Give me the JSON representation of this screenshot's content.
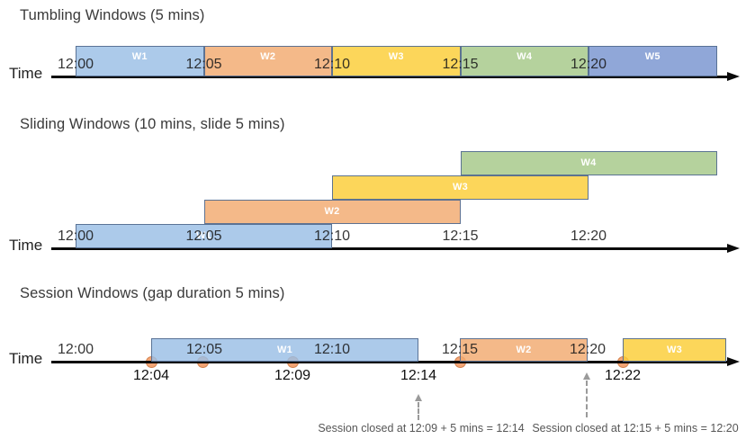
{
  "colors": {
    "blue": "#9ABEE5",
    "orange": "#F1A96F",
    "yellow": "#FBCD36",
    "green": "#A5C888",
    "periwinkle": "#7894D0",
    "box_border": "#556E91",
    "axis": "#0A0A0A",
    "dot_fill": "#F2A474",
    "dot_border": "#D2824E",
    "annotation_text": "#565656",
    "window_label_text": "#FFFFFF"
  },
  "sections": [
    {
      "id": "tumbling",
      "title": "Tumbling Windows (5 mins)",
      "axis_label": "Time",
      "ticks": [
        "12:00",
        "12:05",
        "12:10",
        "12:15",
        "12:20"
      ],
      "windows": [
        {
          "label": "W1",
          "from": "12:00",
          "to": "12:05",
          "color": "blue"
        },
        {
          "label": "W2",
          "from": "12:05",
          "to": "12:10",
          "color": "orange"
        },
        {
          "label": "W3",
          "from": "12:10",
          "to": "12:15",
          "color": "yellow"
        },
        {
          "label": "W4",
          "from": "12:15",
          "to": "12:20",
          "color": "green"
        },
        {
          "label": "W5",
          "from": "12:20",
          "to": "12:25",
          "color": "periwinkle"
        }
      ]
    },
    {
      "id": "sliding",
      "title": "Sliding Windows (10 mins, slide 5 mins)",
      "axis_label": "Time",
      "ticks": [
        "12:00",
        "12:05",
        "12:10",
        "12:15",
        "12:20"
      ],
      "windows": [
        {
          "label": "W1",
          "from": "12:00",
          "to": "12:10",
          "color": "blue",
          "row": 0
        },
        {
          "label": "W2",
          "from": "12:05",
          "to": "12:15",
          "color": "orange",
          "row": 1
        },
        {
          "label": "W3",
          "from": "12:10",
          "to": "12:20",
          "color": "yellow",
          "row": 2
        },
        {
          "label": "W4",
          "from": "12:15",
          "to": "12:25",
          "color": "green",
          "row": 3
        }
      ]
    },
    {
      "id": "session",
      "title": "Session Windows (gap duration 5 mins)",
      "axis_label": "Time",
      "ticks": [
        "12:00",
        "12:05",
        "12:10",
        "12:15",
        "12:20"
      ],
      "event_times": [
        "12:04",
        "12:05",
        "12:09",
        "12:15",
        "12:22"
      ],
      "event_labels_below": [
        "12:04",
        "12:09",
        "12:14",
        "12:22"
      ],
      "windows": [
        {
          "label": "W1",
          "from": "12:04",
          "to": "12:14",
          "color": "blue"
        },
        {
          "label": "W2",
          "from": "12:15",
          "to": "12:20",
          "color": "orange"
        },
        {
          "label": "W3",
          "from": "12:22",
          "to": "12:25",
          "color": "yellow"
        }
      ],
      "annotations": [
        {
          "text": "Session closed at 12:09 + 5 mins = 12:14",
          "points_to": "12:14"
        },
        {
          "text": "Session closed at 12:15 + 5 mins = 12:20",
          "points_to": "12:20"
        }
      ]
    }
  ]
}
